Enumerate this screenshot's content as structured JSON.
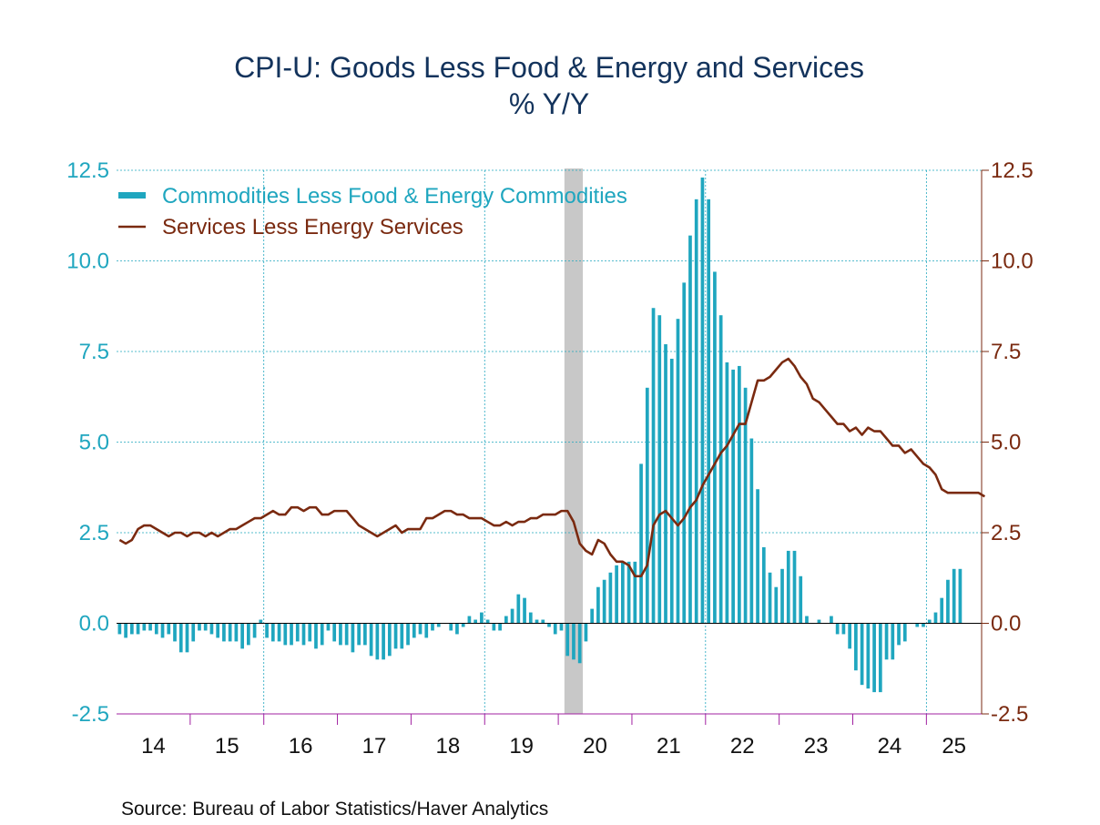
{
  "chart_data": {
    "type": "bar",
    "title": "CPI-U: Goods Less Food & Energy and Services",
    "subtitle": "% Y/Y",
    "source": "Source:  Bureau of Labor Statistics/Haver Analytics",
    "x_tick_labels": [
      "14",
      "15",
      "16",
      "17",
      "18",
      "19",
      "20",
      "21",
      "22",
      "23",
      "24",
      "25"
    ],
    "y_left_ticks": [
      "12.5",
      "10.0",
      "7.5",
      "5.0",
      "2.5",
      "0.0",
      "-2.5"
    ],
    "y_right_ticks": [
      "12.5",
      "10.0",
      "7.5",
      "5.0",
      "2.5",
      "0.0",
      "-2.5"
    ],
    "ylim": [
      -2.5,
      12.5
    ],
    "xlim": [
      "2014-01",
      "2025-09"
    ],
    "grid": true,
    "legend_position": "top-left",
    "recession": {
      "start": "2020-02",
      "end": "2020-04"
    },
    "colors": {
      "commodities": "#1fa6bf",
      "services": "#7a2a10",
      "grid": "#1fa6bf",
      "recession": "#c8c8c8",
      "title": "#13335c",
      "axis_bottom": "#a020a0"
    },
    "series": [
      {
        "name": "Commodities Less Food & Energy Commodities",
        "type": "bar",
        "axis": "left",
        "start": "2014-01",
        "frequency": "monthly",
        "values": [
          -0.3,
          -0.4,
          -0.3,
          -0.3,
          -0.2,
          -0.2,
          -0.3,
          -0.4,
          -0.3,
          -0.5,
          -0.8,
          -0.8,
          -0.5,
          -0.2,
          -0.2,
          -0.3,
          -0.4,
          -0.5,
          -0.5,
          -0.5,
          -0.7,
          -0.6,
          -0.4,
          0.1,
          -0.4,
          -0.5,
          -0.5,
          -0.6,
          -0.6,
          -0.5,
          -0.6,
          -0.5,
          -0.7,
          -0.6,
          -0.2,
          -0.5,
          -0.6,
          -0.6,
          -0.8,
          -0.6,
          -0.6,
          -0.9,
          -1.0,
          -1.0,
          -0.9,
          -0.7,
          -0.7,
          -0.6,
          -0.4,
          -0.3,
          -0.4,
          -0.2,
          -0.1,
          0.0,
          -0.2,
          -0.3,
          -0.1,
          0.2,
          0.1,
          0.3,
          0.1,
          -0.2,
          -0.2,
          0.2,
          0.4,
          0.8,
          0.7,
          0.3,
          0.1,
          0.1,
          -0.1,
          -0.3,
          -0.2,
          -0.9,
          -1.0,
          -1.1,
          -0.5,
          0.4,
          1.0,
          1.2,
          1.4,
          1.6,
          1.7,
          1.7,
          1.7,
          4.4,
          6.5,
          8.7,
          8.5,
          7.7,
          7.3,
          8.4,
          9.4,
          10.7,
          11.7,
          12.3,
          11.7,
          9.7,
          8.5,
          7.2,
          7.0,
          7.1,
          6.5,
          5.1,
          3.7,
          2.1,
          1.4,
          1.0,
          1.5,
          2.0,
          2.0,
          1.3,
          0.2,
          0.0,
          0.1,
          0.0,
          0.2,
          -0.3,
          -0.3,
          -0.7,
          -1.3,
          -1.7,
          -1.8,
          -1.9,
          -1.9,
          -1.0,
          -1.0,
          -0.6,
          -0.5,
          0.0,
          -0.1,
          -0.1,
          0.1,
          0.3,
          0.7,
          1.2,
          1.5,
          1.5
        ]
      },
      {
        "name": "Services Less Energy Services",
        "type": "line",
        "axis": "right",
        "start": "2014-01",
        "frequency": "monthly",
        "values": [
          2.3,
          2.2,
          2.3,
          2.6,
          2.7,
          2.7,
          2.6,
          2.5,
          2.4,
          2.5,
          2.5,
          2.4,
          2.5,
          2.5,
          2.4,
          2.5,
          2.4,
          2.5,
          2.6,
          2.6,
          2.7,
          2.8,
          2.9,
          2.9,
          3.0,
          3.1,
          3.0,
          3.0,
          3.2,
          3.2,
          3.1,
          3.2,
          3.2,
          3.0,
          3.0,
          3.1,
          3.1,
          3.1,
          2.9,
          2.7,
          2.6,
          2.5,
          2.4,
          2.5,
          2.6,
          2.7,
          2.5,
          2.6,
          2.6,
          2.6,
          2.9,
          2.9,
          3.0,
          3.1,
          3.1,
          3.0,
          3.0,
          2.9,
          2.9,
          2.9,
          2.8,
          2.7,
          2.7,
          2.8,
          2.7,
          2.8,
          2.8,
          2.9,
          2.9,
          3.0,
          3.0,
          3.0,
          3.1,
          3.1,
          2.8,
          2.2,
          2.0,
          1.9,
          2.3,
          2.2,
          1.9,
          1.7,
          1.7,
          1.6,
          1.3,
          1.3,
          1.6,
          2.7,
          3.0,
          3.1,
          2.9,
          2.7,
          2.9,
          3.2,
          3.4,
          3.8,
          4.1,
          4.4,
          4.7,
          4.9,
          5.2,
          5.5,
          5.5,
          6.1,
          6.7,
          6.7,
          6.8,
          7.0,
          7.2,
          7.3,
          7.1,
          6.8,
          6.6,
          6.2,
          6.1,
          5.9,
          5.7,
          5.5,
          5.5,
          5.3,
          5.4,
          5.2,
          5.4,
          5.3,
          5.3,
          5.1,
          4.9,
          4.9,
          4.7,
          4.8,
          4.6,
          4.4,
          4.3,
          4.1,
          3.7,
          3.6,
          3.6,
          3.6,
          3.6,
          3.6,
          3.6,
          3.5
        ]
      }
    ]
  }
}
